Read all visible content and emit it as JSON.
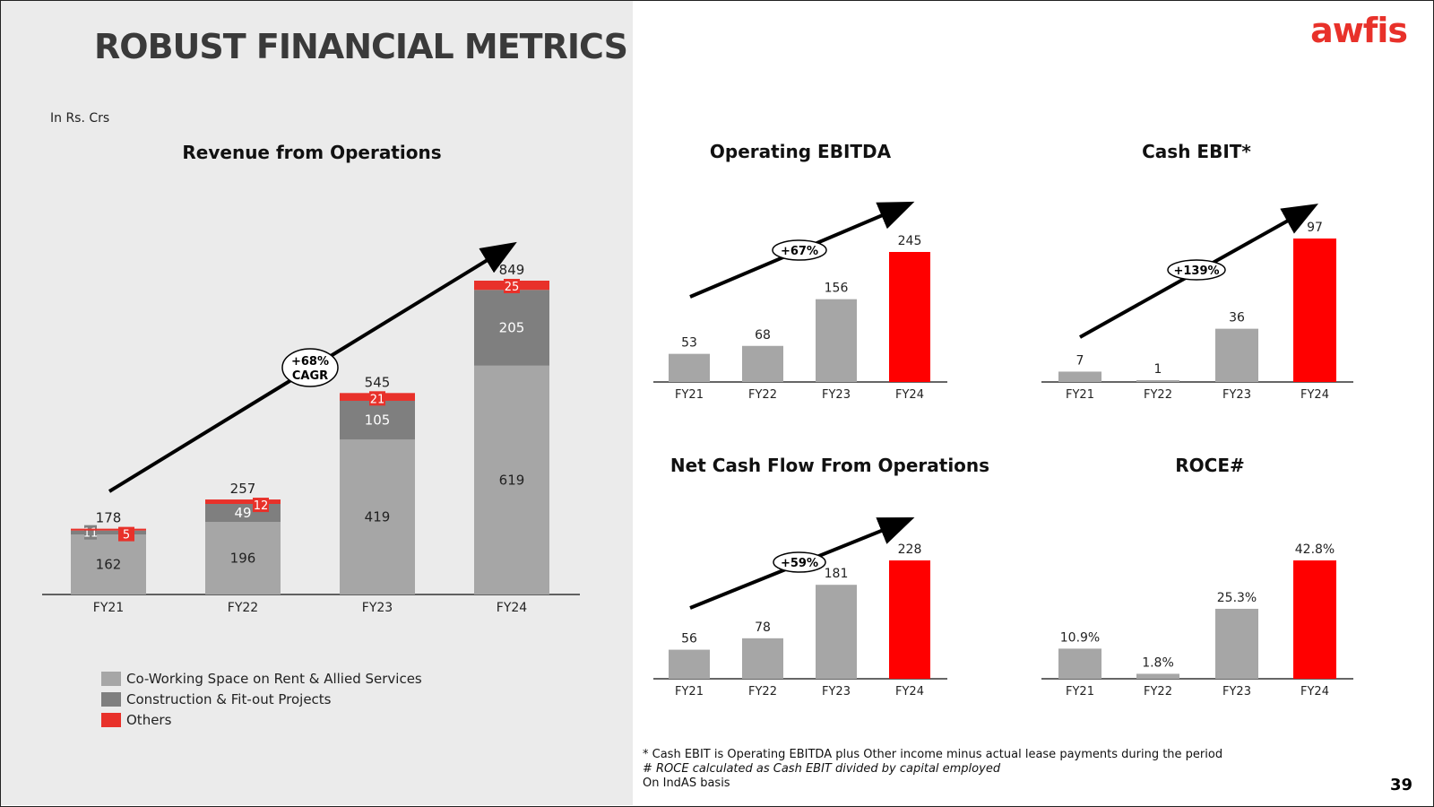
{
  "header": {
    "title": "ROBUST FINANCIAL METRICS",
    "logo": "awfis",
    "unit_note": "In Rs. Crs"
  },
  "colors": {
    "co_working": "#a6a6a6",
    "construction": "#7f7f7f",
    "others": "#e8312a",
    "highlight": "#ff0000",
    "bar": "#a6a6a6"
  },
  "chart_data": [
    {
      "id": "revenue",
      "type": "bar",
      "stacked": true,
      "title": "Revenue from Operations",
      "categories": [
        "FY21",
        "FY22",
        "FY23",
        "FY24"
      ],
      "series": [
        {
          "name": "Co-Working Space on Rent & Allied Services",
          "values": [
            162,
            196,
            419,
            619
          ]
        },
        {
          "name": "Construction & Fit-out Projects",
          "values": [
            11,
            49,
            105,
            205
          ]
        },
        {
          "name": "Others",
          "values": [
            5,
            12,
            21,
            25
          ]
        }
      ],
      "totals": [
        178,
        257,
        545,
        849
      ],
      "annotation": [
        "+68%",
        "CAGR"
      ],
      "legend": "bottom-left"
    },
    {
      "id": "ebitda",
      "type": "bar",
      "title": "Operating EBITDA",
      "categories": [
        "FY21",
        "FY22",
        "FY23",
        "FY24"
      ],
      "values": [
        53,
        68,
        156,
        245
      ],
      "labels": [
        "53",
        "68",
        "156",
        "245"
      ],
      "annotation": [
        "+67%"
      ]
    },
    {
      "id": "cashebit",
      "type": "bar",
      "title": "Cash EBIT*",
      "categories": [
        "FY21",
        "FY22",
        "FY23",
        "FY24"
      ],
      "values": [
        7,
        1,
        36,
        97
      ],
      "labels": [
        "7",
        "1",
        "36",
        "97"
      ],
      "annotation": [
        "+139%"
      ]
    },
    {
      "id": "ncf",
      "type": "bar",
      "title": "Net Cash Flow From Operations",
      "categories": [
        "FY21",
        "FY22",
        "FY23",
        "FY24"
      ],
      "values": [
        56,
        78,
        181,
        228
      ],
      "labels": [
        "56",
        "78",
        "181",
        "228"
      ],
      "annotation": [
        "+59%"
      ]
    },
    {
      "id": "roce",
      "type": "bar",
      "title": "ROCE#",
      "categories": [
        "FY21",
        "FY22",
        "FY23",
        "FY24"
      ],
      "values": [
        10.9,
        1.8,
        25.3,
        42.8
      ],
      "labels": [
        "10.9%",
        "1.8%",
        "25.3%",
        "42.8%"
      ]
    }
  ],
  "notes": [
    "* Cash EBIT is Operating EBITDA plus Other income minus actual lease payments during the period",
    "# ROCE calculated as Cash EBIT divided by capital employed",
    "On IndAS basis"
  ],
  "page_number": "39"
}
